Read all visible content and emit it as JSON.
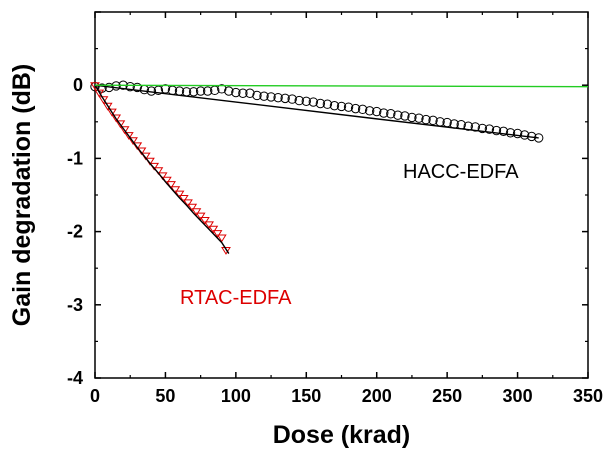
{
  "chart_data": {
    "type": "scatter",
    "title": "",
    "xlabel": "Dose (krad)",
    "ylabel": "Gain degradation (dB)",
    "xlim": [
      0,
      350
    ],
    "ylim": [
      -4,
      1
    ],
    "x_ticks": [
      0,
      50,
      100,
      150,
      200,
      250,
      300,
      350
    ],
    "y_ticks": [
      0,
      -1,
      -2,
      -3,
      -4
    ],
    "x_tick_labels": [
      "0",
      "50",
      "100",
      "150",
      "200",
      "250",
      "300",
      "350"
    ],
    "y_tick_labels": [
      "0",
      "-1",
      "-2",
      "-3",
      "-4"
    ],
    "grid": false,
    "legend": "none",
    "annotations": [
      {
        "id": "hacc",
        "text": "HACC-EDFA",
        "color": "#000000"
      },
      {
        "id": "rtac",
        "text": "RTAC-EDFA",
        "color": "#dd0000"
      }
    ],
    "series": [
      {
        "marker": "circle",
        "color": "#000000",
        "x": [
          0,
          5,
          10,
          15,
          20,
          25,
          30,
          35,
          40,
          45,
          50,
          55,
          60,
          65,
          70,
          75,
          80,
          85,
          90,
          95,
          100,
          105,
          110,
          115,
          120,
          125,
          130,
          135,
          140,
          145,
          150,
          155,
          160,
          165,
          170,
          175,
          180,
          185,
          190,
          195,
          200,
          205,
          210,
          215,
          220,
          225,
          230,
          235,
          240,
          245,
          250,
          255,
          260,
          265,
          270,
          275,
          280,
          285,
          290,
          295,
          300,
          305,
          310,
          315
        ],
        "y": [
          -0.02,
          -0.04,
          -0.03,
          -0.01,
          0.0,
          -0.02,
          -0.03,
          -0.06,
          -0.08,
          -0.07,
          -0.05,
          -0.07,
          -0.08,
          -0.09,
          -0.09,
          -0.08,
          -0.08,
          -0.07,
          -0.05,
          -0.08,
          -0.1,
          -0.11,
          -0.11,
          -0.14,
          -0.15,
          -0.16,
          -0.17,
          -0.18,
          -0.19,
          -0.21,
          -0.22,
          -0.23,
          -0.25,
          -0.26,
          -0.28,
          -0.29,
          -0.3,
          -0.32,
          -0.33,
          -0.35,
          -0.36,
          -0.38,
          -0.39,
          -0.41,
          -0.42,
          -0.44,
          -0.45,
          -0.47,
          -0.48,
          -0.5,
          -0.51,
          -0.53,
          -0.54,
          -0.56,
          -0.57,
          -0.59,
          -0.6,
          -0.62,
          -0.63,
          -0.65,
          -0.66,
          -0.68,
          -0.7,
          -0.72
        ]
      },
      {
        "marker": "triangle-down",
        "color": "#dd0000",
        "x": [
          0,
          3,
          6,
          9,
          12,
          15,
          18,
          21,
          24,
          27,
          30,
          33,
          36,
          39,
          42,
          45,
          48,
          51,
          54,
          57,
          60,
          63,
          66,
          69,
          72,
          75,
          78,
          81,
          84,
          87,
          90,
          93
        ],
        "y": [
          0.0,
          -0.1,
          -0.19,
          -0.28,
          -0.36,
          -0.44,
          -0.52,
          -0.6,
          -0.68,
          -0.75,
          -0.82,
          -0.89,
          -0.96,
          -1.03,
          -1.1,
          -1.16,
          -1.23,
          -1.29,
          -1.35,
          -1.42,
          -1.48,
          -1.54,
          -1.6,
          -1.66,
          -1.72,
          -1.78,
          -1.84,
          -1.9,
          -1.96,
          -2.02,
          -2.08,
          -2.25
        ]
      },
      {
        "marker": "line",
        "color": "#000000",
        "x": [
          0,
          5,
          10,
          15,
          20,
          25,
          30,
          35,
          40,
          45,
          50,
          55,
          60,
          65,
          70,
          75,
          80,
          85,
          90,
          95
        ],
        "y": [
          0.0,
          -0.16,
          -0.31,
          -0.46,
          -0.59,
          -0.72,
          -0.85,
          -0.97,
          -1.09,
          -1.2,
          -1.32,
          -1.43,
          -1.54,
          -1.64,
          -1.75,
          -1.85,
          -1.95,
          -2.05,
          -2.15,
          -2.3
        ]
      },
      {
        "marker": "line",
        "color": "#000000",
        "x": [
          0,
          100,
          200,
          315
        ],
        "y": [
          0.0,
          -0.23,
          -0.46,
          -0.72
        ]
      },
      {
        "marker": "line",
        "color": "#22cc22",
        "x": [
          0,
          350
        ],
        "y": [
          0.0,
          -0.02
        ]
      }
    ]
  }
}
